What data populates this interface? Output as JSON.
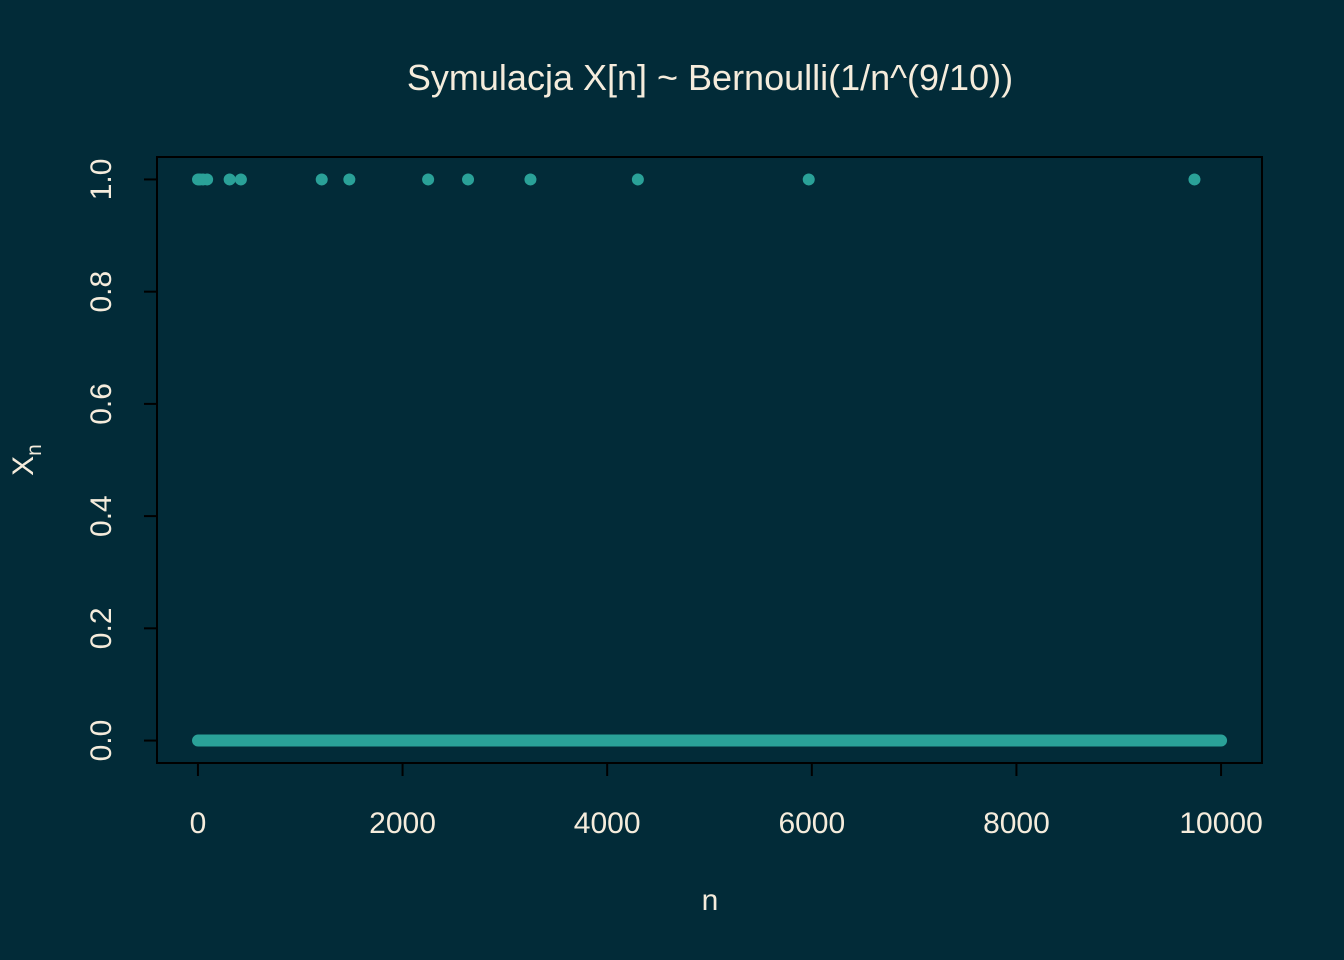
{
  "colors": {
    "background": "#022b38",
    "foreground": "#f5ecdc",
    "points": "#2aa198",
    "frame": "#000000"
  },
  "chart_data": {
    "type": "scatter",
    "title": "Symulacja X[n] ~ Bernoulli(1/n^(9/10))",
    "xlabel": "n",
    "ylabel_main": "X",
    "ylabel_sub": "n",
    "xlim": [
      -400,
      10400
    ],
    "ylim": [
      -0.04,
      1.04
    ],
    "x_ticks": [
      0,
      2000,
      4000,
      6000,
      8000,
      10000
    ],
    "x_tick_labels": [
      "0",
      "2000",
      "4000",
      "6000",
      "8000",
      "10000"
    ],
    "y_ticks": [
      0.0,
      0.2,
      0.4,
      0.6,
      0.8,
      1.0
    ],
    "y_tick_labels": [
      "0.0",
      "0.2",
      "0.4",
      "0.6",
      "0.8",
      "1.0"
    ],
    "n_total": 10000,
    "baseline": {
      "value": 0,
      "x_from": 1,
      "x_to": 10000
    },
    "ones_at": [
      1,
      20,
      50,
      90,
      310,
      420,
      1210,
      1480,
      2250,
      2640,
      3250,
      4300,
      5970,
      9740
    ],
    "grid": false,
    "legend": "none"
  }
}
